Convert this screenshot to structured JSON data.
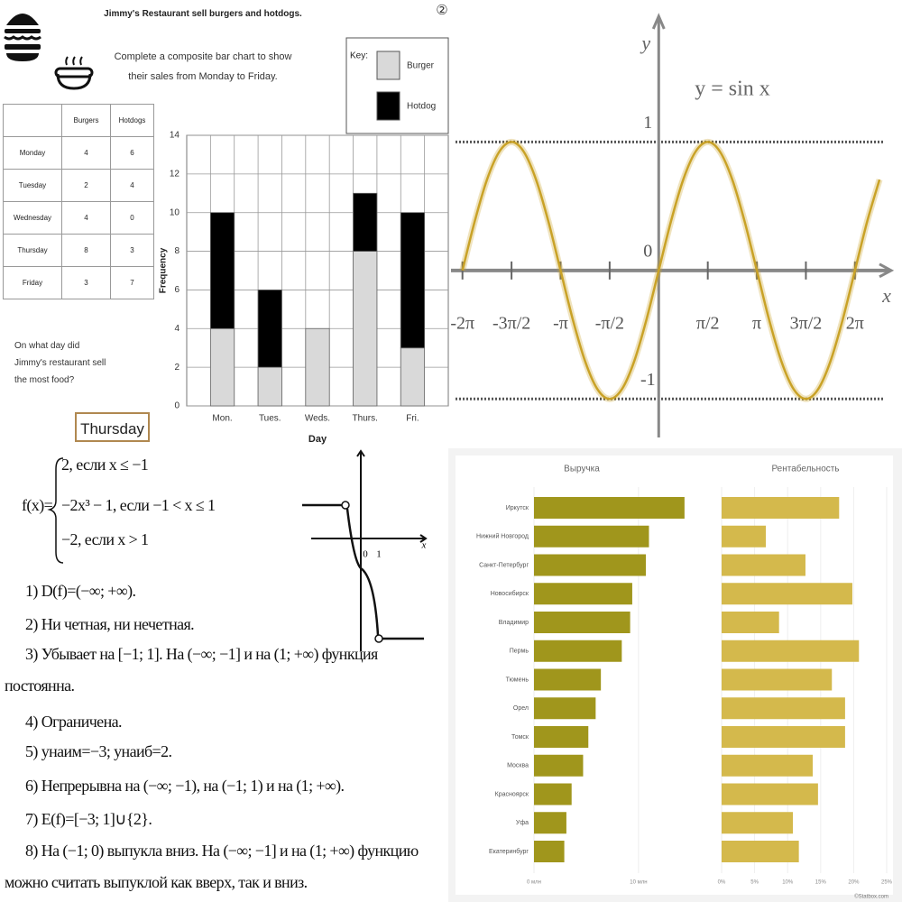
{
  "worksheet": {
    "title": "Jimmy's Restaurant sell burgers and hotdogs.",
    "instruction": "Complete a composite bar chart to show their sales from Monday to Friday.",
    "table": {
      "columns": [
        "Burgers",
        "Hotdogs"
      ],
      "rows": [
        [
          "Monday",
          4,
          6
        ],
        [
          "Tuesday",
          2,
          4
        ],
        [
          "Wednesday",
          4,
          0
        ],
        [
          "Thursday",
          8,
          3
        ],
        [
          "Friday",
          3,
          7
        ]
      ]
    },
    "question": "On what day did Jimmy's restaurant sell the most food?",
    "answer": "Thursday"
  },
  "chart_data": [
    {
      "type": "bar",
      "stacked": true,
      "categories": [
        "Mon.",
        "Tues.",
        "Weds.",
        "Thurs.",
        "Fri."
      ],
      "series": [
        {
          "name": "Burger",
          "color": "#d9d9d9",
          "values": [
            4,
            2,
            4,
            8,
            3
          ]
        },
        {
          "name": "Hotdog",
          "color": "#000000",
          "values": [
            6,
            4,
            0,
            3,
            7
          ]
        }
      ],
      "ylim": [
        0,
        14
      ],
      "yticks": [
        0,
        2,
        4,
        6,
        8,
        10,
        12,
        14
      ],
      "y_label": "Frequency",
      "x_label": "Day",
      "legend_title": "Key:",
      "legend": "upper right",
      "grid": true
    },
    {
      "type": "line",
      "number": "②",
      "title": "y = sin x",
      "x_label": "x",
      "y_label": "y",
      "color": "#c9a227",
      "x": [
        -6.283,
        -5.89,
        -5.498,
        -5.105,
        -4.712,
        -4.32,
        -3.927,
        -3.534,
        -3.142,
        -2.749,
        -2.356,
        -1.963,
        -1.571,
        -1.178,
        -0.785,
        -0.393,
        0,
        0.393,
        0.785,
        1.178,
        1.571,
        1.963,
        2.356,
        2.749,
        3.142,
        3.534,
        3.927,
        4.32,
        4.712,
        5.105,
        5.498,
        5.89,
        6.283,
        6.676,
        7.069
      ],
      "values": [
        0,
        0.383,
        0.707,
        0.924,
        1,
        0.924,
        0.707,
        0.383,
        0,
        -0.383,
        -0.707,
        -0.924,
        -1,
        -0.924,
        -0.707,
        -0.383,
        0,
        0.383,
        0.707,
        0.924,
        1,
        0.924,
        0.707,
        0.383,
        0,
        -0.383,
        -0.707,
        -0.924,
        -1,
        -0.924,
        -0.707,
        -0.383,
        0,
        0.383,
        0.707
      ],
      "xlim": [
        -6.65,
        7.5
      ],
      "ylim": [
        -1.3,
        2.0
      ],
      "xticks": [
        {
          "value": -6.283,
          "label": "-2π"
        },
        {
          "value": -4.712,
          "label": "-3π/2"
        },
        {
          "value": -3.142,
          "label": "-π"
        },
        {
          "value": -1.571,
          "label": "-π/2"
        },
        {
          "value": 1.571,
          "label": "π/2"
        },
        {
          "value": 3.142,
          "label": "π"
        },
        {
          "value": 4.712,
          "label": "3π/2"
        },
        {
          "value": 6.283,
          "label": "2π"
        }
      ],
      "yticks": [
        -1,
        0,
        1
      ],
      "grid": true
    },
    {
      "type": "hbar",
      "title": "Выручка",
      "categories": [
        "Иркутск",
        "Нижний Новгород",
        "Санкт-Петербург",
        "Новосибирск",
        "Владимир",
        "Пермь",
        "Тюмень",
        "Орел",
        "Томск",
        "Москва",
        "Красноярск",
        "Уфа",
        "Екатеринбург"
      ],
      "values": [
        14.4,
        11.0,
        10.7,
        9.4,
        9.2,
        8.4,
        6.4,
        5.9,
        5.2,
        4.7,
        3.6,
        3.1,
        2.9
      ],
      "color": "#a0961c",
      "xlim": [
        0,
        17
      ],
      "xticks": [
        {
          "value": 0,
          "label": "0 млн"
        },
        {
          "value": 10,
          "label": "10 млн"
        }
      ]
    },
    {
      "type": "hbar",
      "title": "Рентабельность",
      "values": [
        17.8,
        6.7,
        12.7,
        19.8,
        8.7,
        20.8,
        16.7,
        18.7,
        18.7,
        13.8,
        14.6,
        10.8,
        11.7
      ],
      "color": "#d4b94c",
      "xlim": [
        0,
        26.5
      ],
      "xticks": [
        {
          "value": 0,
          "label": "0%"
        },
        {
          "value": 5,
          "label": "5%"
        },
        {
          "value": 10,
          "label": "10%"
        },
        {
          "value": 15,
          "label": "15%"
        },
        {
          "value": 20,
          "label": "20%"
        },
        {
          "value": 25,
          "label": "25%"
        }
      ],
      "source": "©Statbox.com"
    }
  ],
  "document": {
    "function_name": "f(x)=",
    "cases": [
      "2, если x ≤ −1",
      "−2x³ − 1, если −1 < x ≤ 1",
      "−2, если x > 1"
    ],
    "items": [
      "1) D(f)=(−∞; +∞).",
      "2) Ни четная, ни нечетная.",
      "3) Убывает на [−1; 1]. На (−∞; −1] и на (1; +∞) функция постоянна.",
      "4) Ограничена.",
      "5) yнаим=−3; yнаиб=2.",
      "6) Непрерывна на (−∞; −1), на (−1; 1) и на (1; +∞).",
      "7) E(f)=[−3; 1]∪{2}.",
      "8) На (−1; 0) выпукла вниз. На (−∞; −1] и на (1; +∞) функцию можно считать выпуклой как вверх, так и вниз."
    ],
    "graph_labels": [
      "0",
      "1",
      "x"
    ]
  }
}
